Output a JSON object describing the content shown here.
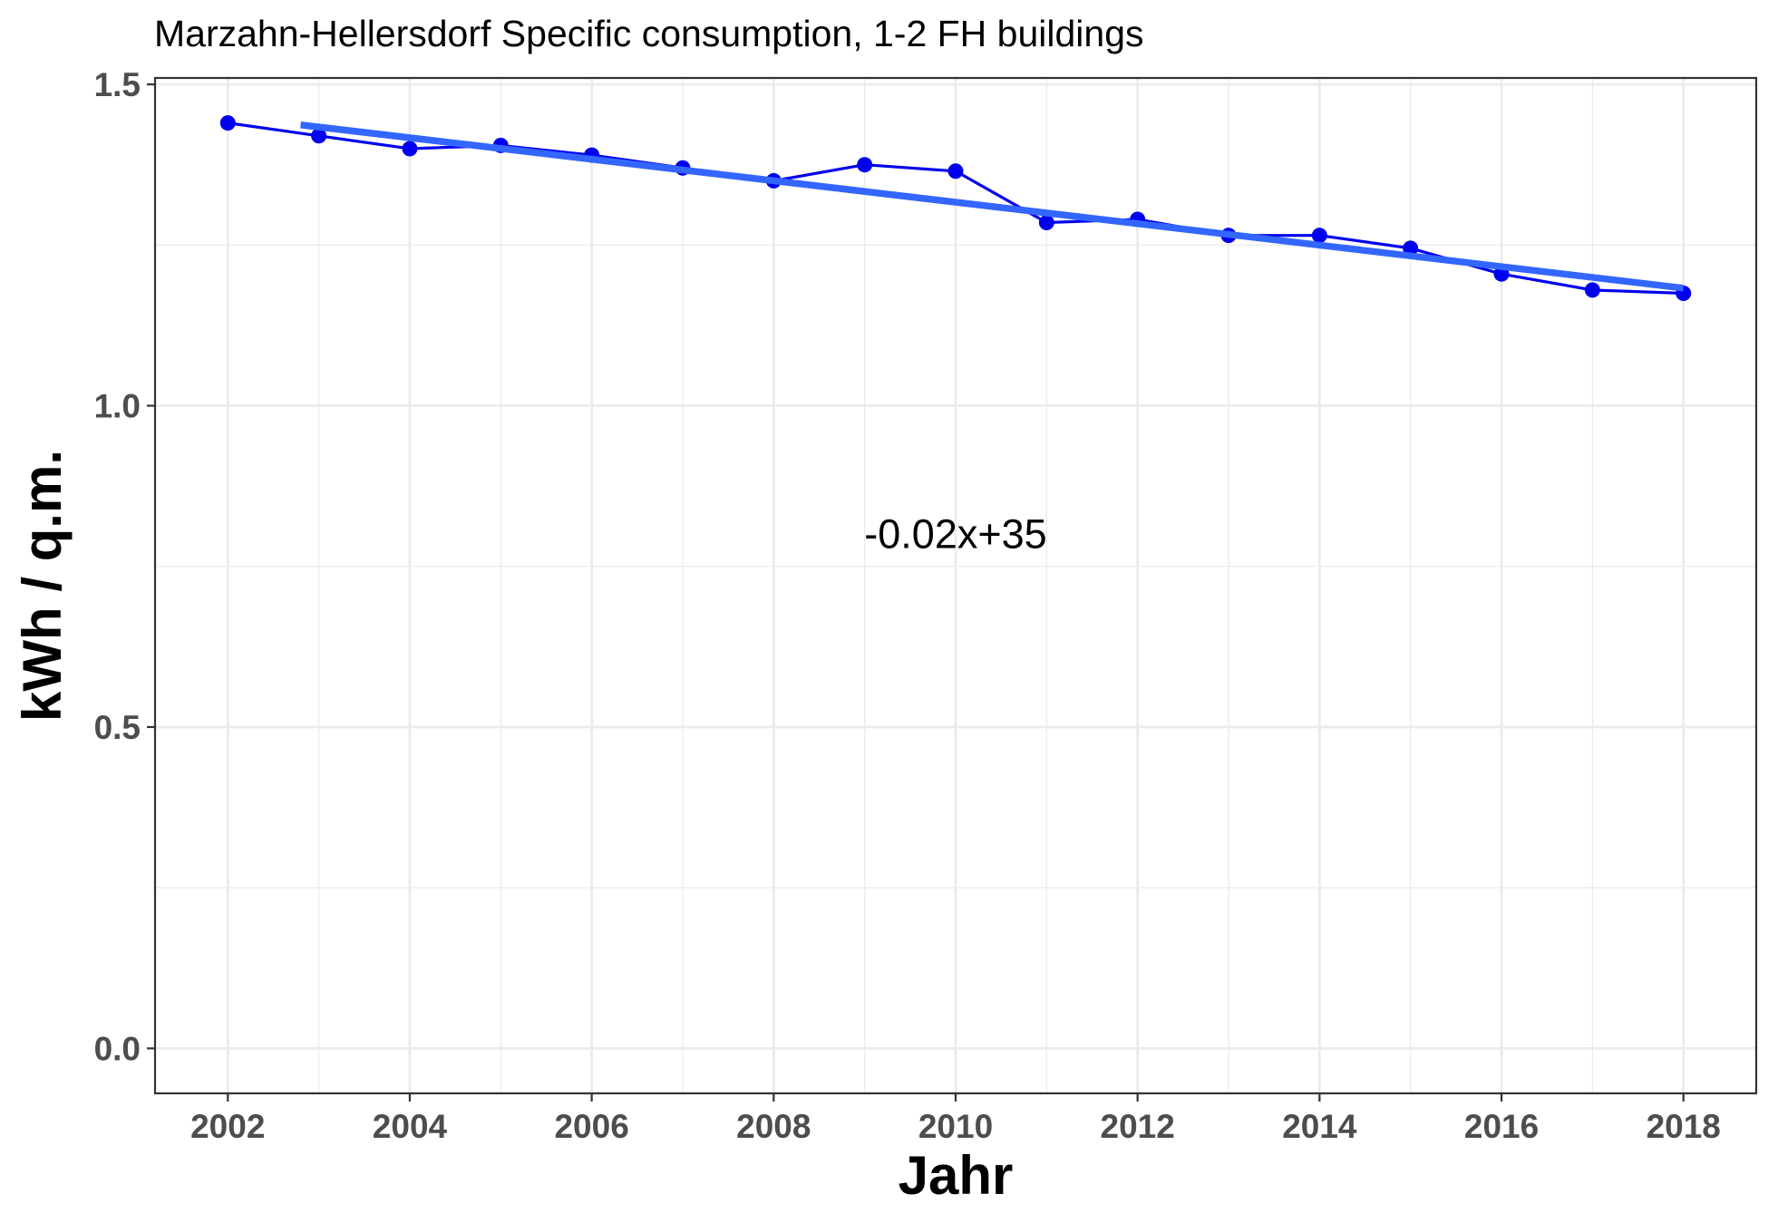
{
  "chart_data": {
    "type": "line",
    "title": "Marzahn-Hellersdorf Specific consumption, 1-2 FH buildings",
    "xlabel": "Jahr",
    "ylabel": "kWh / q.m.",
    "xlim": [
      2001.2,
      2018.8
    ],
    "ylim": [
      -0.07,
      1.51
    ],
    "x_ticks": [
      2002,
      2004,
      2006,
      2008,
      2010,
      2012,
      2014,
      2016,
      2018
    ],
    "x_tick_labels": [
      "2002",
      "2004",
      "2006",
      "2008",
      "2010",
      "2012",
      "2014",
      "2016",
      "2018"
    ],
    "y_ticks": [
      0.0,
      0.5,
      1.0,
      1.5
    ],
    "y_tick_labels": [
      "0.0",
      "0.5",
      "1.0",
      "1.5"
    ],
    "grid": true,
    "legend": "none",
    "series": [
      {
        "color": "#0000ee",
        "markers": true,
        "x": [
          2002,
          2003,
          2004,
          2005,
          2006,
          2007,
          2008,
          2009,
          2010,
          2011,
          2012,
          2013,
          2014,
          2015,
          2016,
          2017,
          2018
        ],
        "y": [
          1.44,
          1.42,
          1.4,
          1.405,
          1.39,
          1.37,
          1.35,
          1.375,
          1.365,
          1.285,
          1.29,
          1.265,
          1.265,
          1.245,
          1.205,
          1.18,
          1.175
        ]
      }
    ],
    "trend_line": {
      "color": "#3366ff",
      "x": [
        2002.8,
        2018.0
      ],
      "y": [
        1.437,
        1.183
      ]
    },
    "annotation": {
      "text": "-0.02x+35",
      "x": 2010,
      "y": 0.8
    }
  }
}
